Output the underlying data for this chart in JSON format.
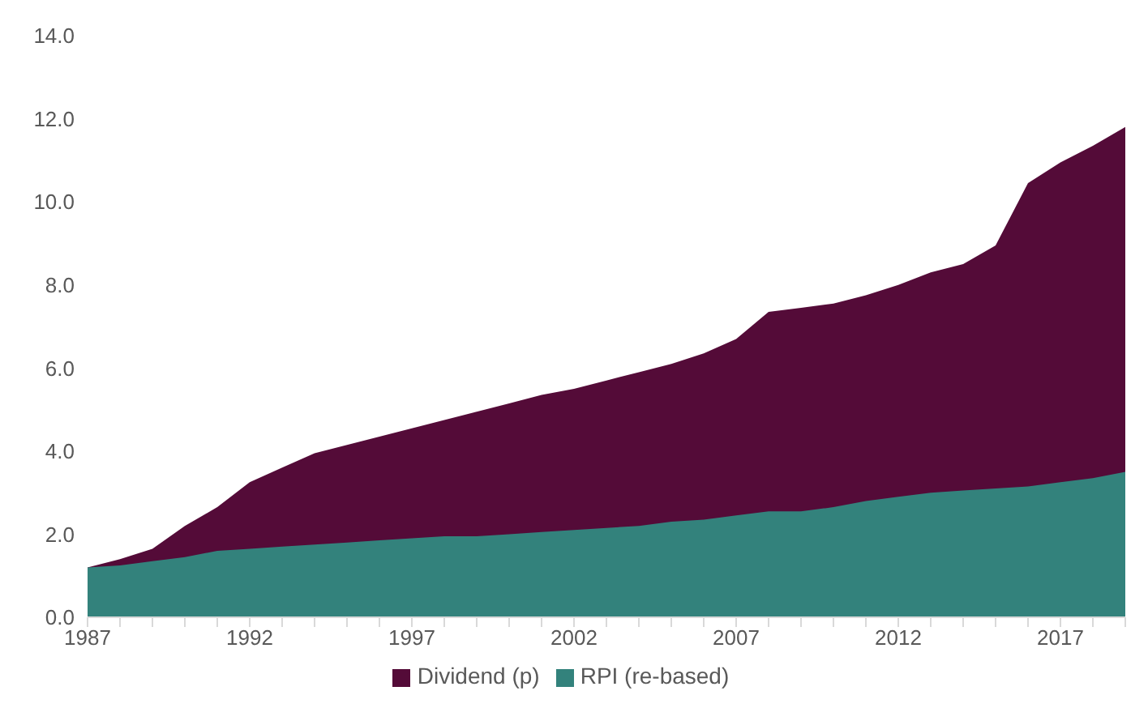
{
  "chart_data": {
    "type": "area",
    "categories": [
      "1987",
      null,
      null,
      null,
      null,
      "1992",
      null,
      null,
      null,
      null,
      "1997",
      null,
      null,
      null,
      null,
      "2002",
      null,
      null,
      null,
      null,
      "2007",
      null,
      null,
      null,
      null,
      "2012",
      null,
      null,
      null,
      null,
      "2017",
      null,
      null
    ],
    "series": [
      {
        "name": "Dividend (p)",
        "color": "#540b38",
        "values": [
          1.2,
          1.4,
          1.65,
          2.2,
          2.65,
          3.25,
          3.6,
          3.95,
          4.15,
          4.35,
          4.55,
          4.75,
          4.95,
          5.15,
          5.35,
          5.5,
          5.7,
          5.9,
          6.1,
          6.35,
          6.7,
          7.35,
          7.45,
          7.55,
          7.75,
          8.0,
          8.3,
          8.5,
          8.95,
          10.45,
          10.95,
          11.35,
          11.8
        ]
      },
      {
        "name": "RPI (re-based)",
        "color": "#33827c",
        "values": [
          1.2,
          1.25,
          1.35,
          1.45,
          1.6,
          1.65,
          1.7,
          1.75,
          1.8,
          1.85,
          1.9,
          1.95,
          1.95,
          2.0,
          2.05,
          2.1,
          2.15,
          2.2,
          2.3,
          2.35,
          2.45,
          2.55,
          2.55,
          2.65,
          2.8,
          2.9,
          3.0,
          3.05,
          3.1,
          3.15,
          3.25,
          3.35,
          3.5
        ]
      }
    ],
    "ylim": [
      0,
      14
    ],
    "yticks": [
      {
        "value": 0,
        "label": "0.0"
      },
      {
        "value": 2,
        "label": "2.0"
      },
      {
        "value": 4,
        "label": "4.0"
      },
      {
        "value": 6,
        "label": "6.0"
      },
      {
        "value": 8,
        "label": "8.0"
      },
      {
        "value": 10,
        "label": "10.0"
      },
      {
        "value": 12,
        "label": "12.0"
      },
      {
        "value": 14,
        "label": "14.0"
      }
    ],
    "grid": false,
    "legend": "bottom"
  }
}
